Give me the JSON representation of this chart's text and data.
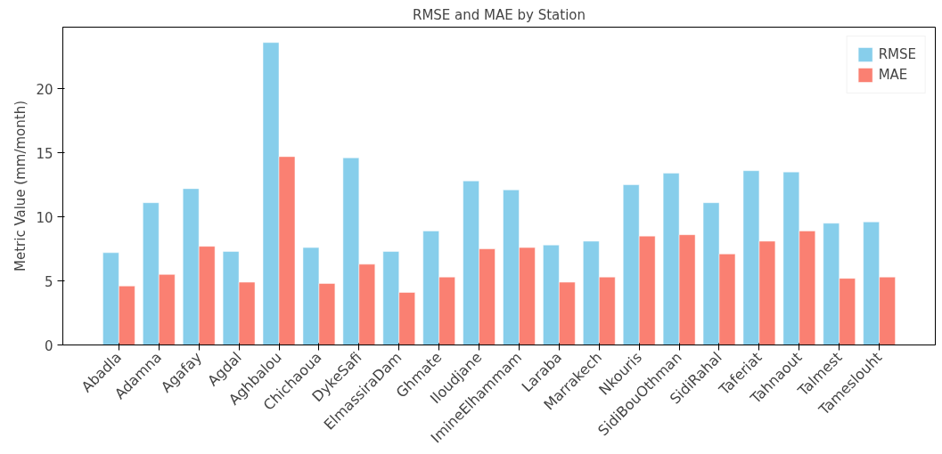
{
  "chart_data": {
    "type": "bar",
    "title": "RMSE and MAE by Station",
    "ylabel": "Metric Value (mm/month)",
    "categories": [
      "Abadla",
      "Adamna",
      "Agafay",
      "Agdal",
      "Aghbalou",
      "Chichaoua",
      "DykeSafi",
      "ElmassiraDam",
      "Ghmate",
      "Iloudjane",
      "ImineElhammam",
      "Laraba",
      "Marrakech",
      "Nkouris",
      "SidiBouOthman",
      "SidiRahal",
      "Taferiat",
      "Tahnaout",
      "Talmest",
      "Tameslouht"
    ],
    "series": [
      {
        "name": "RMSE",
        "color": "#87ceeb",
        "values": [
          7.2,
          11.1,
          12.2,
          7.3,
          23.6,
          7.6,
          14.6,
          7.3,
          8.9,
          12.8,
          12.1,
          7.8,
          8.1,
          12.5,
          13.4,
          11.1,
          13.6,
          13.5,
          9.5,
          9.6
        ]
      },
      {
        "name": "MAE",
        "color": "#fa8072",
        "values": [
          4.6,
          5.5,
          7.7,
          4.9,
          14.7,
          4.8,
          6.3,
          4.1,
          5.3,
          7.5,
          7.6,
          4.9,
          5.3,
          8.5,
          8.6,
          7.1,
          8.1,
          8.9,
          5.2,
          5.3
        ]
      }
    ],
    "ylim": [
      0,
      24.8
    ],
    "yticks": [
      0,
      5,
      10,
      15,
      20
    ],
    "grid": false,
    "legend": "top right"
  }
}
